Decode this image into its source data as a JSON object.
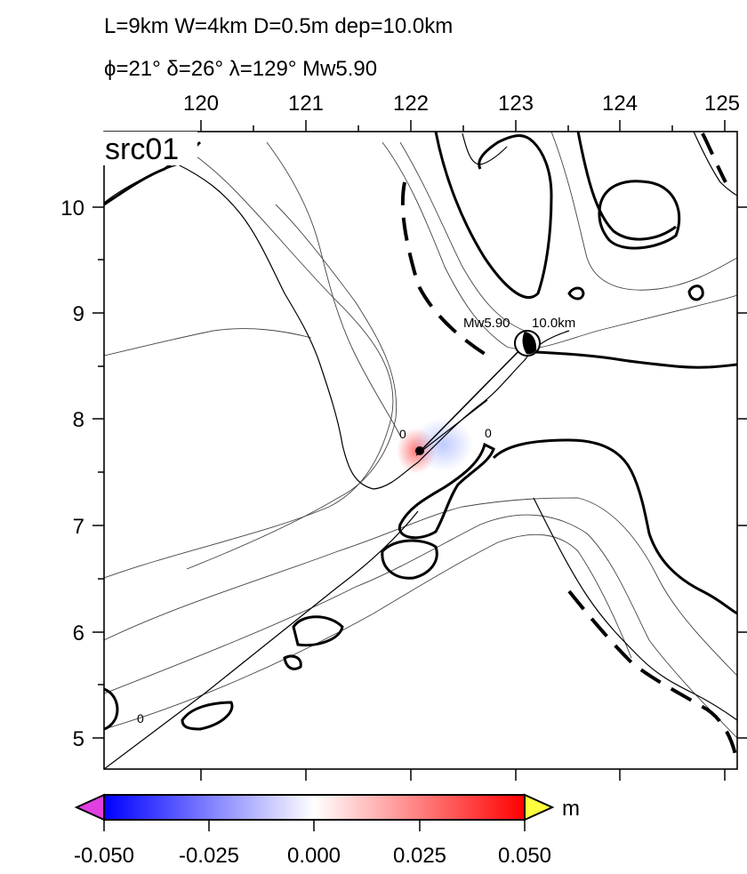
{
  "header": {
    "line1": "L=9km W=4km D=0.5m dep=10.0km",
    "line2": "ϕ=21° δ=26° λ=129° Mw5.90"
  },
  "map": {
    "panel_label": "src01",
    "lon_ticks": [
      "120",
      "121",
      "122",
      "123",
      "124",
      "125"
    ],
    "lat_ticks": [
      "10",
      "9",
      "8",
      "7",
      "6",
      "5"
    ],
    "lon_range": [
      119.1,
      125.1
    ],
    "lat_range": [
      4.7,
      10.35
    ],
    "contour_labels": [
      "0",
      "0",
      "0"
    ],
    "event": {
      "magnitude_label": "Mw5.90",
      "depth_label": "10.0km",
      "lon": 123.1,
      "lat": 8.7
    },
    "source_point": {
      "lon": 122.1,
      "lat": 7.7
    }
  },
  "colorbar": {
    "unit": "m",
    "min": -0.05,
    "max": 0.05,
    "tick_labels": [
      "-0.050",
      "-0.025",
      "0.000",
      "0.025",
      "0.050"
    ],
    "colors": {
      "low_overflow": "#e040e0",
      "low": "#0000ff",
      "mid": "#ffffff",
      "high": "#ff0000",
      "high_overflow": "#ffff40"
    }
  }
}
